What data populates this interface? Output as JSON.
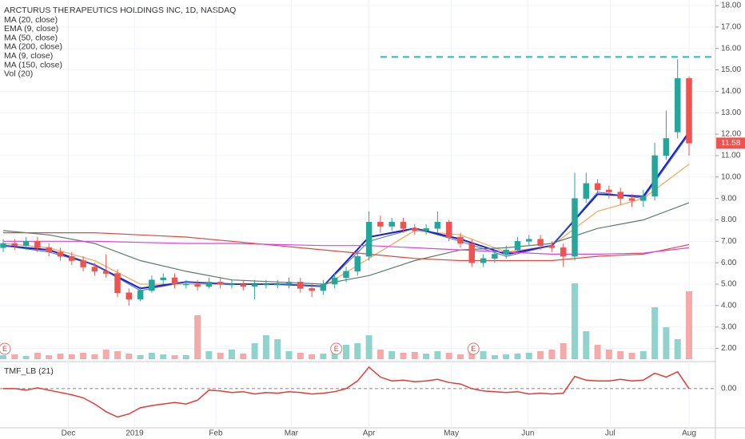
{
  "chart_data": {
    "type": "candlestick",
    "title": "ARCTURUS THERAPEUTICS HOLDINGS INC, 1D, NASDAQ",
    "up_color": "#26a69a",
    "down_color": "#ef5350",
    "ylim": [
      1.5,
      18.0
    ],
    "yticks": [
      {
        "value": 2,
        "label": "2.00"
      },
      {
        "value": 3,
        "label": "3.00"
      },
      {
        "value": 4,
        "label": "4.00"
      },
      {
        "value": 5,
        "label": "5.00"
      },
      {
        "value": 6,
        "label": "6.00"
      },
      {
        "value": 7,
        "label": "7.00"
      },
      {
        "value": 8,
        "label": "8.00"
      },
      {
        "value": 9,
        "label": "9.00"
      },
      {
        "value": 10,
        "label": "10.00"
      },
      {
        "value": 11,
        "label": "11.00"
      },
      {
        "value": 12,
        "label": "12.00"
      },
      {
        "value": 13,
        "label": "13.00"
      },
      {
        "value": 14,
        "label": "14.00"
      },
      {
        "value": 15,
        "label": "15.00"
      },
      {
        "value": 16,
        "label": "16.00"
      },
      {
        "value": 17,
        "label": "17.00"
      },
      {
        "value": 18,
        "label": "18.00"
      }
    ],
    "xticks": [
      {
        "value": 5.7,
        "label": "Dec"
      },
      {
        "value": 11.5,
        "label": "2019"
      },
      {
        "value": 18.6,
        "label": "Feb"
      },
      {
        "value": 25.2,
        "label": "Mar"
      },
      {
        "value": 32.0,
        "label": "Apr"
      },
      {
        "value": 39.2,
        "label": "May"
      },
      {
        "value": 45.9,
        "label": "Jun"
      },
      {
        "value": 53.1,
        "label": "Jul"
      },
      {
        "value": 60.0,
        "label": "Aug"
      }
    ],
    "open": [
      6.7,
      6.9,
      6.8,
      7.0,
      6.7,
      6.5,
      6.3,
      6.1,
      5.8,
      5.6,
      5.5,
      4.6,
      4.3,
      4.7,
      5.2,
      5.3,
      5.0,
      5.0,
      4.9,
      5.1,
      5.0,
      5.0,
      4.9,
      5.0,
      5.0,
      5.0,
      5.1,
      4.8,
      4.7,
      5.0,
      5.3,
      5.6,
      6.3,
      7.9,
      7.7,
      7.9,
      7.6,
      7.5,
      7.6,
      7.9,
      7.2,
      6.9,
      6.0,
      6.2,
      6.4,
      6.6,
      7.0,
      7.1,
      6.8,
      6.7,
      6.3,
      9.0,
      9.7,
      9.4,
      9.3,
      9.0,
      8.9,
      9.1,
      11.0,
      12.1,
      14.6
    ],
    "high": [
      7.1,
      7.1,
      7.2,
      7.2,
      6.9,
      6.7,
      6.5,
      6.3,
      6.0,
      6.4,
      5.7,
      4.8,
      4.9,
      5.4,
      5.5,
      5.5,
      5.2,
      5.2,
      5.3,
      5.3,
      5.2,
      5.2,
      5.2,
      5.2,
      5.2,
      5.3,
      5.3,
      5.0,
      5.2,
      5.5,
      5.8,
      6.6,
      8.4,
      8.2,
      8.1,
      8.1,
      7.8,
      7.8,
      8.4,
      8.0,
      7.4,
      7.1,
      6.4,
      6.6,
      6.8,
      7.2,
      7.3,
      7.3,
      7.0,
      6.9,
      10.2,
      10.2,
      9.9,
      9.6,
      9.5,
      9.2,
      9.4,
      11.6,
      13.1,
      15.5,
      14.7
    ],
    "low": [
      6.5,
      6.6,
      6.6,
      6.5,
      6.3,
      6.1,
      5.9,
      5.6,
      5.4,
      5.3,
      4.4,
      4.0,
      4.2,
      4.6,
      5.0,
      4.8,
      4.8,
      4.7,
      4.8,
      4.8,
      4.8,
      4.7,
      4.3,
      4.8,
      4.8,
      4.8,
      4.6,
      4.4,
      4.5,
      4.8,
      5.1,
      5.4,
      6.1,
      7.4,
      7.5,
      7.4,
      7.3,
      7.3,
      7.4,
      7.0,
      6.7,
      5.8,
      5.8,
      6.0,
      6.2,
      6.4,
      6.8,
      6.6,
      6.5,
      5.8,
      6.1,
      8.8,
      9.2,
      9.0,
      8.7,
      8.6,
      8.6,
      8.9,
      10.8,
      11.8,
      11.0
    ],
    "close": [
      6.9,
      6.8,
      7.0,
      6.7,
      6.5,
      6.3,
      6.1,
      5.8,
      5.6,
      5.5,
      4.6,
      4.3,
      4.7,
      5.2,
      5.3,
      5.0,
      5.0,
      4.9,
      5.1,
      5.0,
      5.0,
      4.9,
      5.0,
      5.0,
      5.0,
      5.1,
      4.8,
      4.7,
      5.0,
      5.3,
      5.6,
      6.3,
      7.9,
      7.7,
      7.9,
      7.6,
      7.5,
      7.6,
      7.9,
      7.2,
      6.9,
      6.0,
      6.2,
      6.4,
      6.6,
      7.0,
      7.1,
      6.8,
      6.7,
      6.3,
      9.0,
      9.7,
      9.4,
      9.3,
      9.0,
      8.9,
      9.1,
      11.0,
      11.8,
      14.6,
      11.58
    ],
    "ma_x": [
      0,
      4,
      8,
      12,
      16,
      20,
      24,
      28,
      32,
      36,
      40,
      44,
      48,
      52,
      56,
      60
    ],
    "series": [
      {
        "name": "MA (20, close)",
        "color": "#f7a350",
        "width": 1.2,
        "values": [
          6.9,
          6.7,
          6.1,
          5.0,
          5.0,
          5.0,
          5.0,
          4.9,
          6.2,
          7.5,
          7.3,
          6.5,
          6.8,
          8.4,
          9.0,
          10.6
        ]
      },
      {
        "name": "EMA (9, close)",
        "color": "#1a1acb",
        "width": 2,
        "values": [
          6.8,
          6.6,
          5.9,
          4.8,
          5.1,
          5.0,
          5.0,
          4.9,
          7.2,
          7.6,
          7.1,
          6.4,
          6.8,
          9.2,
          9.1,
          12.1
        ]
      },
      {
        "name": "MA (50, close)",
        "color": "#5b7a6a",
        "width": 1.2,
        "values": [
          7.5,
          7.3,
          6.9,
          6.1,
          5.6,
          5.2,
          5.1,
          5.0,
          5.4,
          6.1,
          6.6,
          6.7,
          6.9,
          7.6,
          8.0,
          8.8
        ]
      },
      {
        "name": "MA (200, close)",
        "color": "#e0483a",
        "width": 1.2,
        "values": [
          7.4,
          7.4,
          7.4,
          7.3,
          7.2,
          7.0,
          6.8,
          6.6,
          6.4,
          6.2,
          6.1,
          6.1,
          6.1,
          6.3,
          6.4,
          6.85
        ]
      },
      {
        "name": "MA (9, close)",
        "color": "#3a68c4",
        "width": 1,
        "values": [
          6.8,
          6.5,
          5.9,
          4.7,
          5.1,
          5.0,
          5.0,
          4.9,
          7.0,
          7.6,
          7.0,
          6.3,
          6.8,
          9.3,
          9.0,
          12.0
        ]
      },
      {
        "name": "MA (150, close)",
        "color": "#e040e0",
        "width": 1.2,
        "values": [
          7.0,
          7.0,
          7.0,
          6.95,
          6.9,
          6.9,
          6.85,
          6.8,
          6.8,
          6.7,
          6.6,
          6.5,
          6.4,
          6.4,
          6.45,
          6.7
        ]
      }
    ],
    "volume": {
      "name": "Vol (20)",
      "vlim": [
        0,
        1
      ],
      "up_color": "#8fd3cc",
      "down_color": "#f6a9a9",
      "values": [
        0.05,
        0.06,
        0.04,
        0.08,
        0.05,
        0.07,
        0.06,
        0.08,
        0.06,
        0.12,
        0.1,
        0.07,
        0.05,
        0.08,
        0.06,
        0.05,
        0.05,
        0.55,
        0.1,
        0.08,
        0.12,
        0.07,
        0.2,
        0.3,
        0.25,
        0.1,
        0.08,
        0.06,
        0.07,
        0.12,
        0.18,
        0.2,
        0.3,
        0.12,
        0.1,
        0.08,
        0.09,
        0.07,
        0.1,
        0.08,
        0.06,
        0.12,
        0.1,
        0.05,
        0.06,
        0.07,
        0.08,
        0.1,
        0.12,
        0.2,
        0.95,
        0.35,
        0.18,
        0.12,
        0.1,
        0.08,
        0.1,
        0.65,
        0.4,
        0.25,
        0.85
      ]
    },
    "hline": {
      "value": 15.6,
      "color": "#26b5c9",
      "start": 33
    },
    "events": [
      {
        "label": "E",
        "index": 0
      },
      {
        "label": "E",
        "index": 29
      },
      {
        "label": "E",
        "index": 41
      }
    ],
    "tmf": {
      "name": "TMF_LB (21)",
      "color": "#e53935",
      "ylim": [
        -0.5,
        0.3
      ],
      "yticks": [
        {
          "value": 0,
          "label": "0.00"
        }
      ],
      "values": [
        0.0,
        0.0,
        -0.02,
        0.01,
        -0.02,
        -0.05,
        -0.08,
        -0.12,
        -0.2,
        -0.3,
        -0.37,
        -0.33,
        -0.25,
        -0.22,
        -0.2,
        -0.18,
        -0.2,
        -0.15,
        -0.02,
        -0.03,
        -0.05,
        -0.04,
        -0.07,
        -0.05,
        -0.06,
        -0.04,
        -0.05,
        -0.07,
        -0.06,
        -0.04,
        0.0,
        0.1,
        0.28,
        0.15,
        0.1,
        0.11,
        0.09,
        0.1,
        0.12,
        0.08,
        0.06,
        0.0,
        -0.03,
        -0.04,
        -0.05,
        -0.04,
        -0.07,
        -0.06,
        -0.07,
        -0.06,
        0.16,
        0.11,
        0.1,
        0.1,
        0.12,
        0.1,
        0.11,
        0.2,
        0.15,
        0.22,
        0.0
      ]
    }
  }
}
